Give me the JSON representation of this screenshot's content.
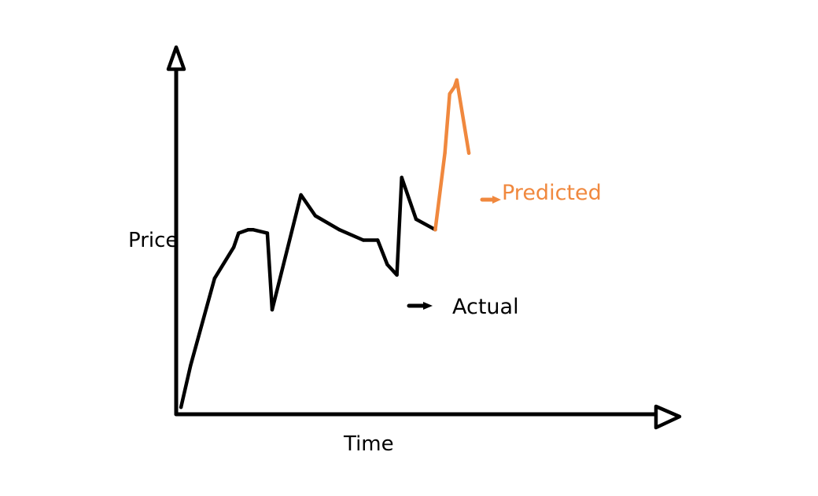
{
  "chart_data": {
    "type": "line",
    "title": "",
    "xlabel": "Time",
    "ylabel": "Price",
    "grid": false,
    "legend": "none",
    "xlim": [
      0,
      100
    ],
    "ylim": [
      0,
      100
    ],
    "series": [
      {
        "name": "Actual",
        "color": "#000000",
        "x": [
          1,
          3,
          8,
          12,
          13,
          15,
          16,
          19,
          20,
          26,
          29,
          34,
          39,
          42,
          44,
          46,
          47,
          50,
          54
        ],
        "y": [
          2,
          14,
          39,
          48,
          52,
          53,
          53,
          52,
          30,
          63,
          57,
          53,
          50,
          50,
          43,
          40,
          68,
          56,
          53
        ]
      },
      {
        "name": "Predicted",
        "color": "#f0883e",
        "x": [
          54,
          56,
          57,
          58,
          58.5,
          61
        ],
        "y": [
          53,
          75,
          92,
          94,
          96,
          75
        ]
      }
    ],
    "annotations": [
      {
        "text": "Actual",
        "pointer_color": "#000000"
      },
      {
        "text": "Predicted",
        "pointer_color": "#f0883e"
      }
    ]
  }
}
